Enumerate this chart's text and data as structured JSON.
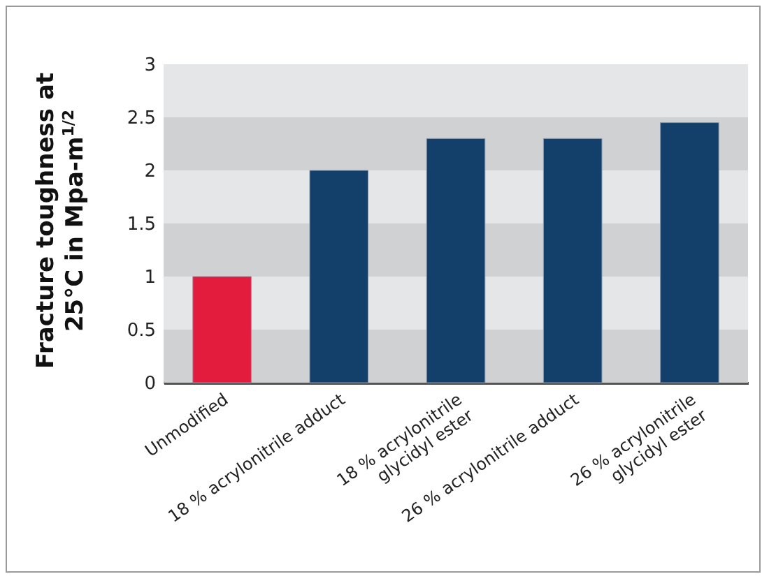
{
  "chart_data": {
    "type": "bar",
    "ylabel": "Fracture toughness at\n25°C in Mpa-m$^{1/2}$",
    "categories": [
      "Unmodified",
      "18 % acrylonitrile adduct",
      "18 % acrylonitrile\nglycidyl ester",
      "26 % acrylonitrile adduct",
      "26 % acrylonitrile\nglycidyl ester"
    ],
    "values": [
      1,
      2,
      2.3,
      2.3,
      2.45
    ],
    "colors": [
      "#e31c3d",
      "#13406b",
      "#13406b",
      "#13406b",
      "#13406b"
    ],
    "ylim": [
      0,
      3
    ],
    "yticks": [
      0,
      0.5,
      1,
      1.5,
      2,
      2.5,
      3
    ],
    "bands": [
      {
        "axis": "y",
        "from": 0,
        "to": 0.5,
        "color": "#d0d1d3"
      },
      {
        "axis": "y",
        "from": 0.5,
        "to": 1,
        "color": "#e5e6e8"
      },
      {
        "axis": "y",
        "from": 1,
        "to": 1.5,
        "color": "#d0d1d3"
      },
      {
        "axis": "y",
        "from": 1.5,
        "to": 2,
        "color": "#e5e6e8"
      },
      {
        "axis": "y",
        "from": 2,
        "to": 2.5,
        "color": "#d0d1d3"
      },
      {
        "axis": "y",
        "from": 2.5,
        "to": 3,
        "color": "#e5e6e8"
      }
    ]
  }
}
